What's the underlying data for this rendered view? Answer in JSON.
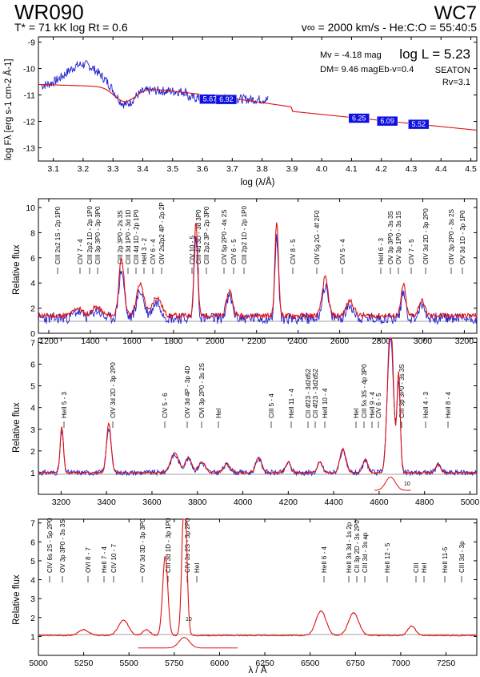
{
  "header": {
    "star": "WR090",
    "sptype": "WC7",
    "left_params": "T* = 71 kK   log Rt = 0.6",
    "right_params": "v∞ = 2000 km/s - He:C:O = 55:40:5"
  },
  "colors": {
    "model": "#e01010",
    "observed": "#2020d0",
    "box": "#1010e0",
    "axis": "#000000",
    "ref": "#808080"
  },
  "panel_sed": {
    "info_left": [
      "Mv = -4.18 mag",
      "DM= 9.46 mag"
    ],
    "logL": "log L = 5.23",
    "ebv": "Eb-v=0.4",
    "seaton": "SEATON",
    "rv": "Rv=3.1",
    "ylabel": "log Fλ [erg s-1 cm-2 Å-1]",
    "xlabel": "log (λ/Å)",
    "xticks": [
      "3.1",
      "3.2",
      "3.3",
      "3.4",
      "3.5",
      "3.6",
      "3.7",
      "3.8",
      "3.9",
      "4.0",
      "4.1",
      "4.2",
      "4.3",
      "4.4",
      "4.5"
    ],
    "yticks": [
      "-9",
      "-10",
      "-11",
      "-12",
      "-13"
    ],
    "photometry": [
      {
        "x": 3.625,
        "label": "5.67"
      },
      {
        "x": 3.68,
        "label": "6.92"
      },
      {
        "x": 4.125,
        "label": "6.25"
      },
      {
        "x": 4.22,
        "label": "6.09"
      },
      {
        "x": 4.325,
        "label": "5.52"
      }
    ]
  },
  "panel_uv": {
    "ylabel": "Relative flux",
    "xticks": [
      "1200",
      "1400",
      "1600",
      "1800",
      "2000",
      "2200",
      "2400",
      "2600",
      "2800",
      "3000",
      "3200"
    ],
    "yticks": [
      "0",
      "2",
      "4",
      "6",
      "8",
      "10"
    ],
    "lines": [
      "CIII 2s2 1S - 2p 1P0",
      "CIV 7 - 4",
      "CIII 2p2 1D - 2p 1P0",
      "CIII 3p 3P0 - 3p 3P0",
      "CIII 2p 3P0 - 2s 3S",
      "CIII 3d 1P0 - 3d 1D",
      "CIII 4d 1D - 2p 1P0",
      "HeII 3 - 2",
      "CIV 6 - 4",
      "OIV 2s2p2 4P - 2p 2P",
      "CIV 10 - 5",
      "CIII 4d 3D - 3d 3P0",
      "CIII 2p2 3P - 2p 3P0",
      "CIV 5p 2P0 - 4s 2S",
      "CIV 6 - 5",
      "CIII 2p2 1D - 2p 1P0",
      "CIV 8 - 5",
      "OIV 5g 2G - 4f 2F0",
      "CIV 5 - 4",
      "HeII 6 - 3",
      "OV 3p 3P0 - 3s 3S",
      "OV 3p 1P0 - 3s 1S",
      "CIV 7 - 5",
      "OIV 3d 2D - 3p 2P0",
      "OIV 3p 2P0 - 3s 2S",
      "OV 3d 1D - 3p 1P0"
    ]
  },
  "panel_opt": {
    "ylabel": "Relative flux",
    "xticks": [
      "3200",
      "3400",
      "3600",
      "3800",
      "4000",
      "4200",
      "4400",
      "4600",
      "4800",
      "5000"
    ],
    "yticks": [
      "1",
      "2",
      "3",
      "4",
      "5",
      "6",
      "7"
    ],
    "lines": [
      "HeII 5 - 3",
      "OIV 3d 2D - 3p 2P0",
      "CIV 5 - 6",
      "OIV 3d 4P - 3p 4D",
      "OVI 3p 2P0 - 3s 2S",
      "HeI",
      "CIII 5 - 4",
      "HeII 11 - 4",
      "CII 4f23 - 3d2d52",
      "CII 4f23 - 3d2d52",
      "HeII 10 - 4",
      "HeI",
      "CIII 5s 3S - 4p 3P0",
      "HeII 9 - 4",
      "CIV 6 - 5",
      "CIII 3p 3P0 - 3s 3S",
      "HeII 4 - 3",
      "HeII 8 - 4"
    ],
    "scale_label": "10"
  },
  "panel_red": {
    "ylabel": "Relative flux",
    "xlabel": "λ / Å",
    "xticks": [
      "5000",
      "5250",
      "5500",
      "5750",
      "6000",
      "6250",
      "6500",
      "6750",
      "7000",
      "7250"
    ],
    "yticks": [
      "1",
      "2",
      "3",
      "4",
      "5",
      "6",
      "7"
    ],
    "lines": [
      "CIV 6s 2S - 5p 2P0",
      "OV 3p 3P0 - 3s 3S",
      "OVI 8 - 7",
      "HeII 7 - 4",
      "CIV 10 - 7",
      "OV 3d 3D - 3p 3P0",
      "CIII 3d 1D - 3p 1P0",
      "CIV 3s 2S - 3p 2P0",
      "HeI",
      "HeII 6 - 4",
      "HeII 3s 3d - 1s 2p",
      "CII 3p 2D - 3s 2P0",
      "CIII 3d - 3s ap",
      "HeII 12 - 5",
      "CIII",
      "HeI",
      "HeII 11-5",
      "CIII 3d - 3p"
    ],
    "scale_label": "10"
  }
}
